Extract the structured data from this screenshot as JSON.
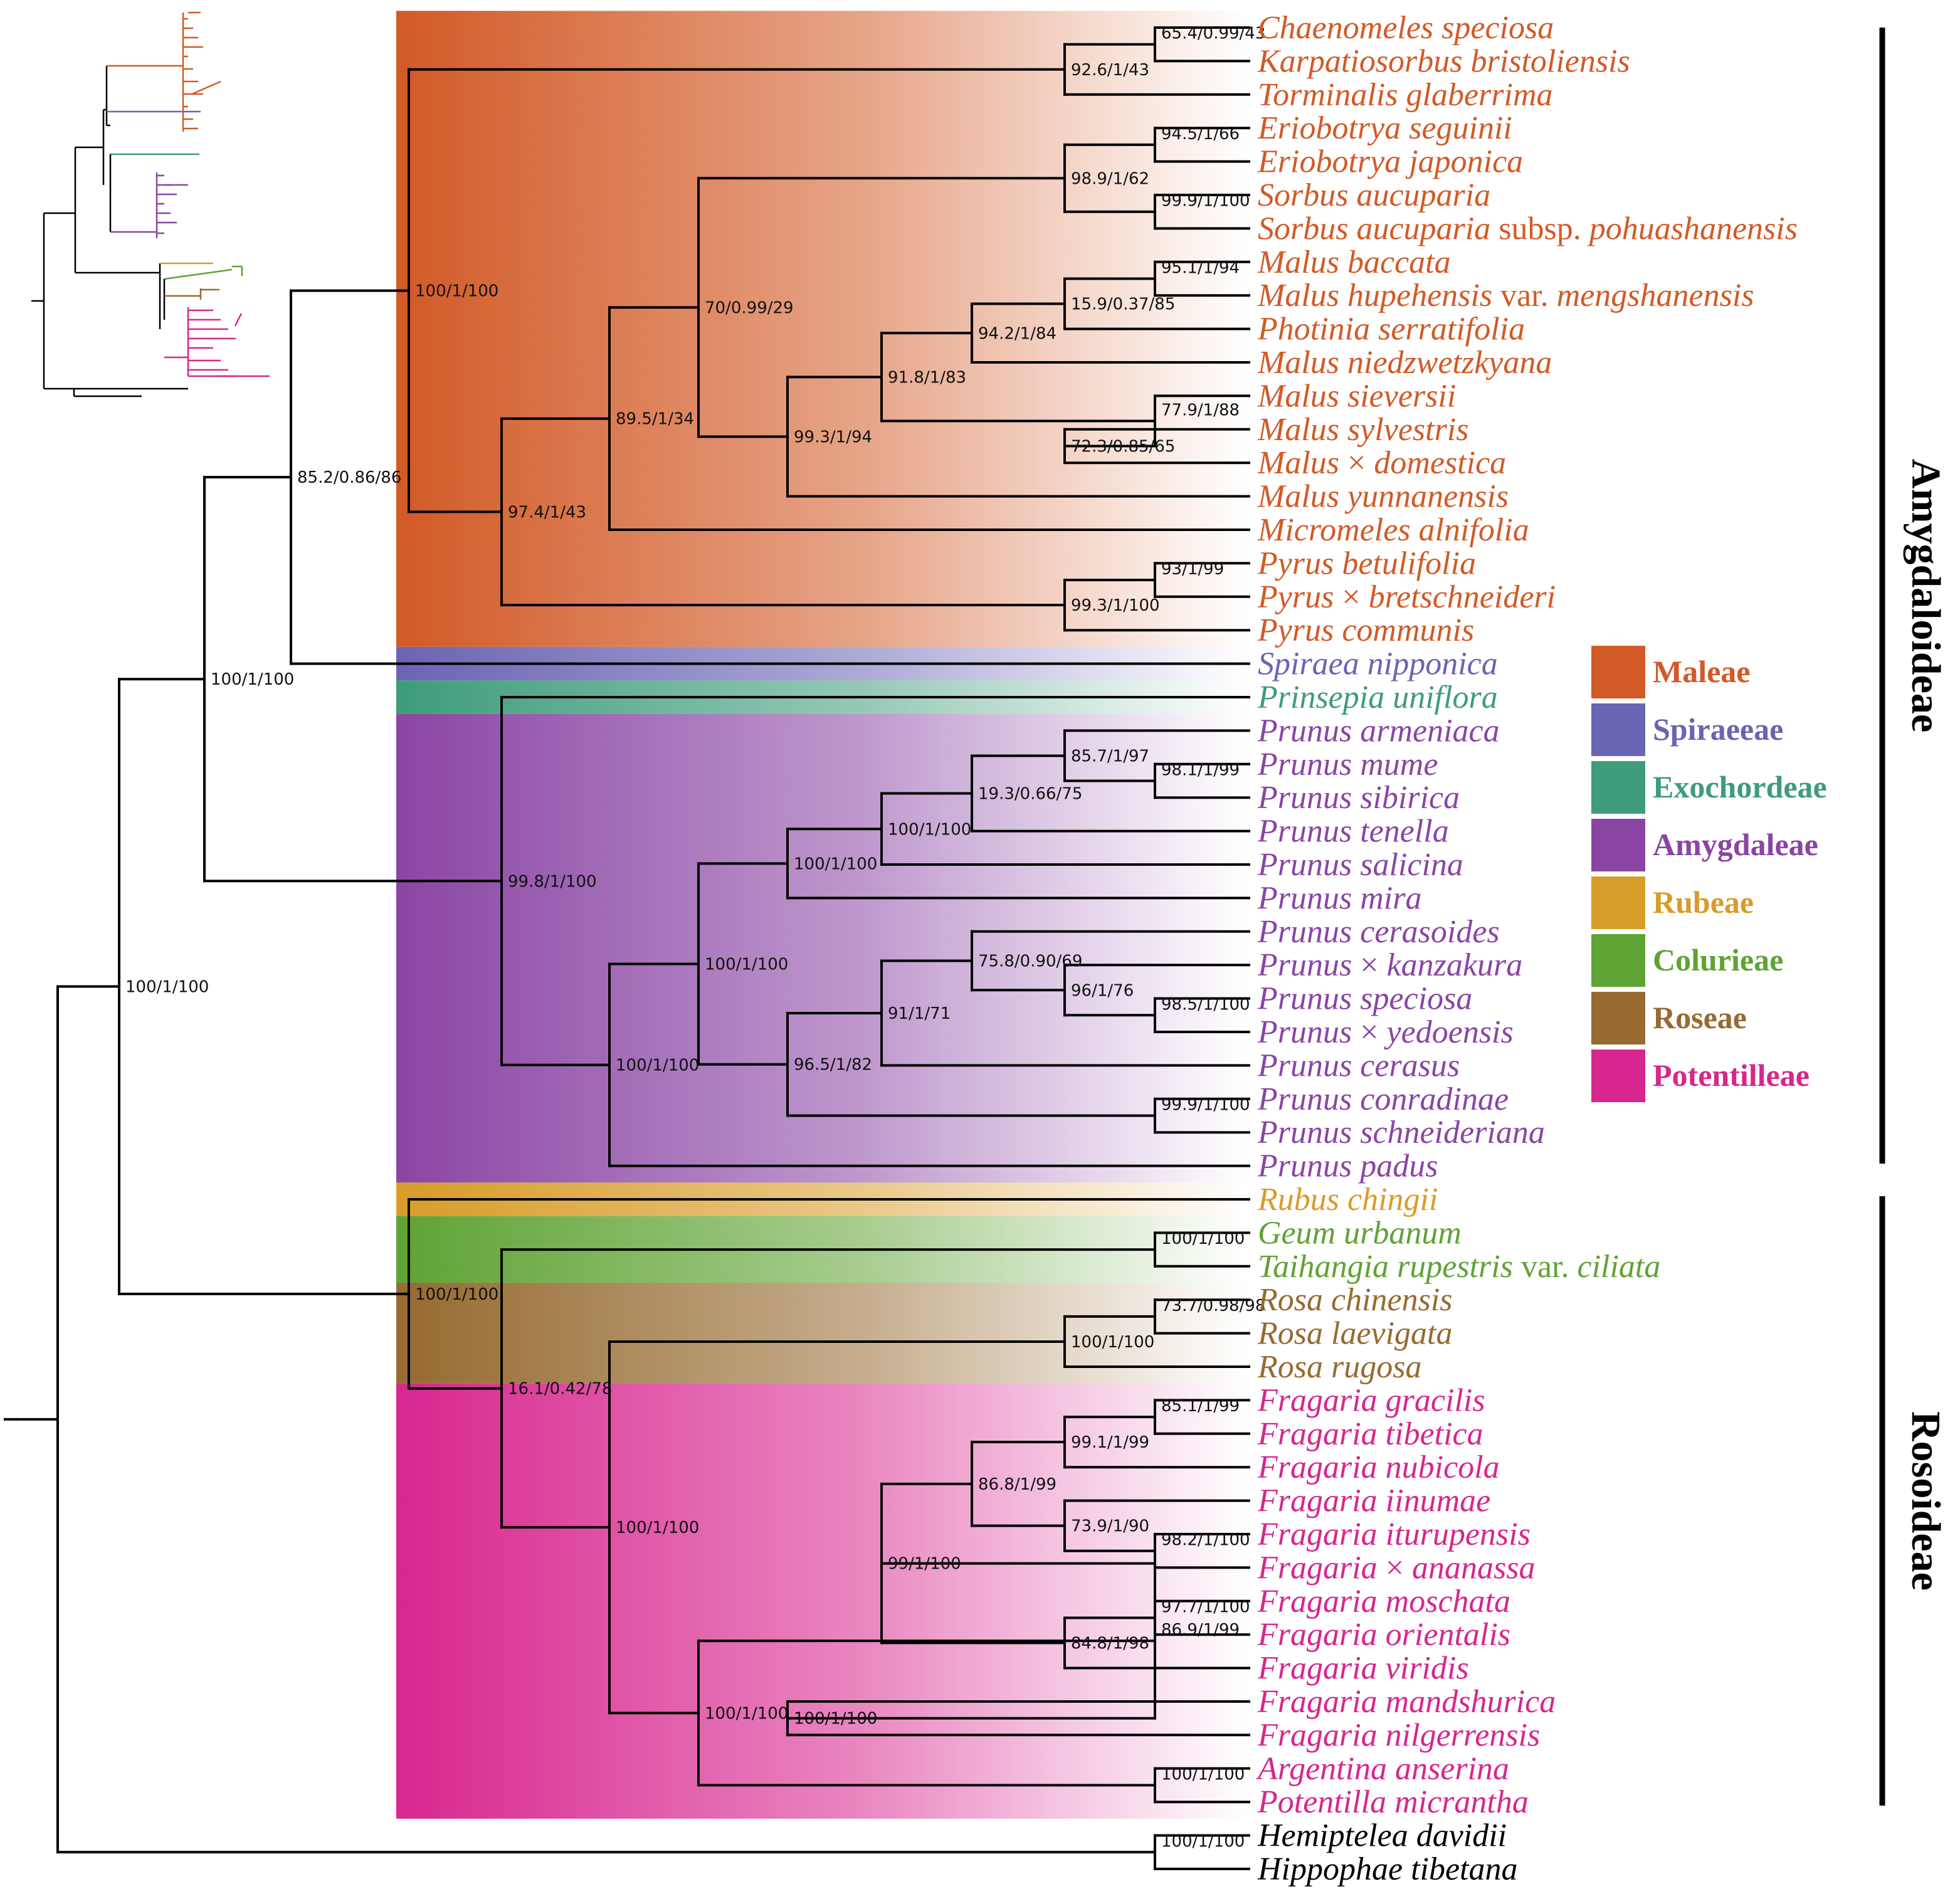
{
  "colors": {
    "Maleae": "#d25a26",
    "Spiraeeae": "#6a64b4",
    "Exochordeae": "#3e9c7a",
    "Amygdaleae": "#8a45a4",
    "Rubeae": "#d89c28",
    "Colurieae": "#5fa334",
    "Roseae": "#966a30",
    "Potentilleae": "#d7268e",
    "Outgroup": "#000000"
  },
  "taxa": [
    {
      "parts": [
        {
          "t": "Chaenomeles speciosa"
        }
      ],
      "tribe": "Maleae"
    },
    {
      "parts": [
        {
          "t": "Karpatiosorbus bristoliensis"
        }
      ],
      "tribe": "Maleae"
    },
    {
      "parts": [
        {
          "t": "Torminalis glaberrima"
        }
      ],
      "tribe": "Maleae"
    },
    {
      "parts": [
        {
          "t": "Eriobotrya seguinii"
        }
      ],
      "tribe": "Maleae"
    },
    {
      "parts": [
        {
          "t": "Eriobotrya japonica"
        }
      ],
      "tribe": "Maleae"
    },
    {
      "parts": [
        {
          "t": "Sorbus aucuparia"
        }
      ],
      "tribe": "Maleae"
    },
    {
      "parts": [
        {
          "t": "Sorbus aucuparia "
        },
        {
          "t": "subsp.",
          "r": true
        },
        {
          "t": " pohuashanensis"
        }
      ],
      "tribe": "Maleae"
    },
    {
      "parts": [
        {
          "t": "Malus baccata"
        }
      ],
      "tribe": "Maleae"
    },
    {
      "parts": [
        {
          "t": "Malus hupehensis "
        },
        {
          "t": "var.",
          "r": true
        },
        {
          "t": " mengshanensis"
        }
      ],
      "tribe": "Maleae"
    },
    {
      "parts": [
        {
          "t": "Photinia serratifolia"
        }
      ],
      "tribe": "Maleae"
    },
    {
      "parts": [
        {
          "t": "Malus niedzwetzkyana"
        }
      ],
      "tribe": "Maleae"
    },
    {
      "parts": [
        {
          "t": "Malus sieversii"
        }
      ],
      "tribe": "Maleae"
    },
    {
      "parts": [
        {
          "t": "Malus sylvestris"
        }
      ],
      "tribe": "Maleae"
    },
    {
      "parts": [
        {
          "t": "Malus "
        },
        {
          "t": "×",
          "r": true
        },
        {
          "t": " domestica"
        }
      ],
      "tribe": "Maleae"
    },
    {
      "parts": [
        {
          "t": "Malus yunnanensis"
        }
      ],
      "tribe": "Maleae"
    },
    {
      "parts": [
        {
          "t": "Micromeles alnifolia"
        }
      ],
      "tribe": "Maleae"
    },
    {
      "parts": [
        {
          "t": "Pyrus betulifolia"
        }
      ],
      "tribe": "Maleae"
    },
    {
      "parts": [
        {
          "t": "Pyrus "
        },
        {
          "t": "×",
          "r": true
        },
        {
          "t": " bretschneideri"
        }
      ],
      "tribe": "Maleae"
    },
    {
      "parts": [
        {
          "t": "Pyrus communis"
        }
      ],
      "tribe": "Maleae"
    },
    {
      "parts": [
        {
          "t": "Spiraea nipponica"
        }
      ],
      "tribe": "Spiraeeae"
    },
    {
      "parts": [
        {
          "t": "Prinsepia uniflora"
        }
      ],
      "tribe": "Exochordeae"
    },
    {
      "parts": [
        {
          "t": "Prunus armeniaca"
        }
      ],
      "tribe": "Amygdaleae"
    },
    {
      "parts": [
        {
          "t": "Prunus mume"
        }
      ],
      "tribe": "Amygdaleae"
    },
    {
      "parts": [
        {
          "t": "Prunus sibirica"
        }
      ],
      "tribe": "Amygdaleae"
    },
    {
      "parts": [
        {
          "t": "Prunus tenella"
        }
      ],
      "tribe": "Amygdaleae"
    },
    {
      "parts": [
        {
          "t": "Prunus salicina"
        }
      ],
      "tribe": "Amygdaleae"
    },
    {
      "parts": [
        {
          "t": "Prunus mira"
        }
      ],
      "tribe": "Amygdaleae"
    },
    {
      "parts": [
        {
          "t": "Prunus cerasoides"
        }
      ],
      "tribe": "Amygdaleae"
    },
    {
      "parts": [
        {
          "t": "Prunus "
        },
        {
          "t": "×",
          "r": true
        },
        {
          "t": " kanzakura"
        }
      ],
      "tribe": "Amygdaleae"
    },
    {
      "parts": [
        {
          "t": "Prunus speciosa"
        }
      ],
      "tribe": "Amygdaleae"
    },
    {
      "parts": [
        {
          "t": "Prunus "
        },
        {
          "t": "×",
          "r": true
        },
        {
          "t": " yedoensis"
        }
      ],
      "tribe": "Amygdaleae"
    },
    {
      "parts": [
        {
          "t": "Prunus cerasus"
        }
      ],
      "tribe": "Amygdaleae"
    },
    {
      "parts": [
        {
          "t": "Prunus conradinae"
        }
      ],
      "tribe": "Amygdaleae"
    },
    {
      "parts": [
        {
          "t": "Prunus schneideriana"
        }
      ],
      "tribe": "Amygdaleae"
    },
    {
      "parts": [
        {
          "t": "Prunus padus"
        }
      ],
      "tribe": "Amygdaleae"
    },
    {
      "parts": [
        {
          "t": "Rubus chingii"
        }
      ],
      "tribe": "Rubeae"
    },
    {
      "parts": [
        {
          "t": "Geum urbanum"
        }
      ],
      "tribe": "Colurieae"
    },
    {
      "parts": [
        {
          "t": "Taihangia rupestris "
        },
        {
          "t": "var.",
          "r": true
        },
        {
          "t": " ciliata"
        }
      ],
      "tribe": "Colurieae"
    },
    {
      "parts": [
        {
          "t": "Rosa chinensis"
        }
      ],
      "tribe": "Roseae"
    },
    {
      "parts": [
        {
          "t": "Rosa laevigata"
        }
      ],
      "tribe": "Roseae"
    },
    {
      "parts": [
        {
          "t": "Rosa rugosa"
        }
      ],
      "tribe": "Roseae"
    },
    {
      "parts": [
        {
          "t": "Fragaria gracilis"
        }
      ],
      "tribe": "Potentilleae"
    },
    {
      "parts": [
        {
          "t": "Fragaria tibetica"
        }
      ],
      "tribe": "Potentilleae"
    },
    {
      "parts": [
        {
          "t": "Fragaria nubicola"
        }
      ],
      "tribe": "Potentilleae"
    },
    {
      "parts": [
        {
          "t": "Fragaria iinumae"
        }
      ],
      "tribe": "Potentilleae"
    },
    {
      "parts": [
        {
          "t": "Fragaria iturupensis"
        }
      ],
      "tribe": "Potentilleae"
    },
    {
      "parts": [
        {
          "t": "Fragaria "
        },
        {
          "t": "×",
          "r": true
        },
        {
          "t": " ananassa"
        }
      ],
      "tribe": "Potentilleae"
    },
    {
      "parts": [
        {
          "t": "Fragaria moschata"
        }
      ],
      "tribe": "Potentilleae"
    },
    {
      "parts": [
        {
          "t": "Fragaria orientalis"
        }
      ],
      "tribe": "Potentilleae"
    },
    {
      "parts": [
        {
          "t": "Fragaria viridis"
        }
      ],
      "tribe": "Potentilleae"
    },
    {
      "parts": [
        {
          "t": "Fragaria mandshurica"
        }
      ],
      "tribe": "Potentilleae"
    },
    {
      "parts": [
        {
          "t": "Fragaria nilgerrensis"
        }
      ],
      "tribe": "Potentilleae"
    },
    {
      "parts": [
        {
          "t": "Argentina anserina"
        }
      ],
      "tribe": "Potentilleae"
    },
    {
      "parts": [
        {
          "t": "Potentilla micrantha"
        }
      ],
      "tribe": "Potentilleae"
    },
    {
      "parts": [
        {
          "t": "Hemiptelea davidii"
        }
      ],
      "tribe": "Outgroup"
    },
    {
      "parts": [
        {
          "t": "Hippophae tibetana"
        }
      ],
      "tribe": "Outgroup"
    }
  ],
  "tree": {
    "support_values": [
      "65.4/0.99/43",
      "92.6/1/43",
      "94.5/1/66",
      "99.9/1/100",
      "98.9/1/62",
      "95.1/1/94",
      "15.9/0.37/85",
      "94.2/1/84",
      "72.3/0.85/65",
      "77.9/1/88",
      "91.8/1/83",
      "99.3/1/94",
      "70/0.99/29",
      "89.5/1/34",
      "93/1/99",
      "99.3/1/100",
      "97.4/1/43",
      "100/1/100",
      "85.2/0.86/86",
      "98.1/1/99",
      "85.7/1/97",
      "19.3/0.66/75",
      "100/1/100",
      "100/1/100",
      "98.5/1/100",
      "96/1/76",
      "75.8/0.90/69",
      "91/1/71",
      "99.9/1/100",
      "96.5/1/82",
      "100/1/100",
      "100/1/100",
      "99.8/1/100",
      "100/1/100",
      "100/1/100",
      "73.7/0.98/98",
      "100/1/100",
      "85.1/1/99",
      "99.1/1/99",
      "98.2/1/100",
      "73.9/1/90",
      "86.8/1/99",
      "97.7/1/100",
      "84.8/1/98",
      "99/1/100",
      "100/1/100",
      "86.9/1/99",
      "100/1/100",
      "100/1/100",
      "100/1/100",
      "16.1/0.42/78",
      "100/1/100",
      "100/1/100",
      "100/1/100"
    ]
  },
  "legend": [
    {
      "label": "Maleae",
      "key": "Maleae"
    },
    {
      "label": "Spiraeeae",
      "key": "Spiraeeae"
    },
    {
      "label": "Exochordeae",
      "key": "Exochordeae"
    },
    {
      "label": "Amygdaleae",
      "key": "Amygdaleae"
    },
    {
      "label": "Rubeae",
      "key": "Rubeae"
    },
    {
      "label": "Colurieae",
      "key": "Colurieae"
    },
    {
      "label": "Roseae",
      "key": "Roseae"
    },
    {
      "label": "Potentilleae",
      "key": "Potentilleae"
    }
  ],
  "subfamilies": [
    {
      "label": "Amygdaloideae"
    },
    {
      "label": "Rosoideae"
    }
  ]
}
